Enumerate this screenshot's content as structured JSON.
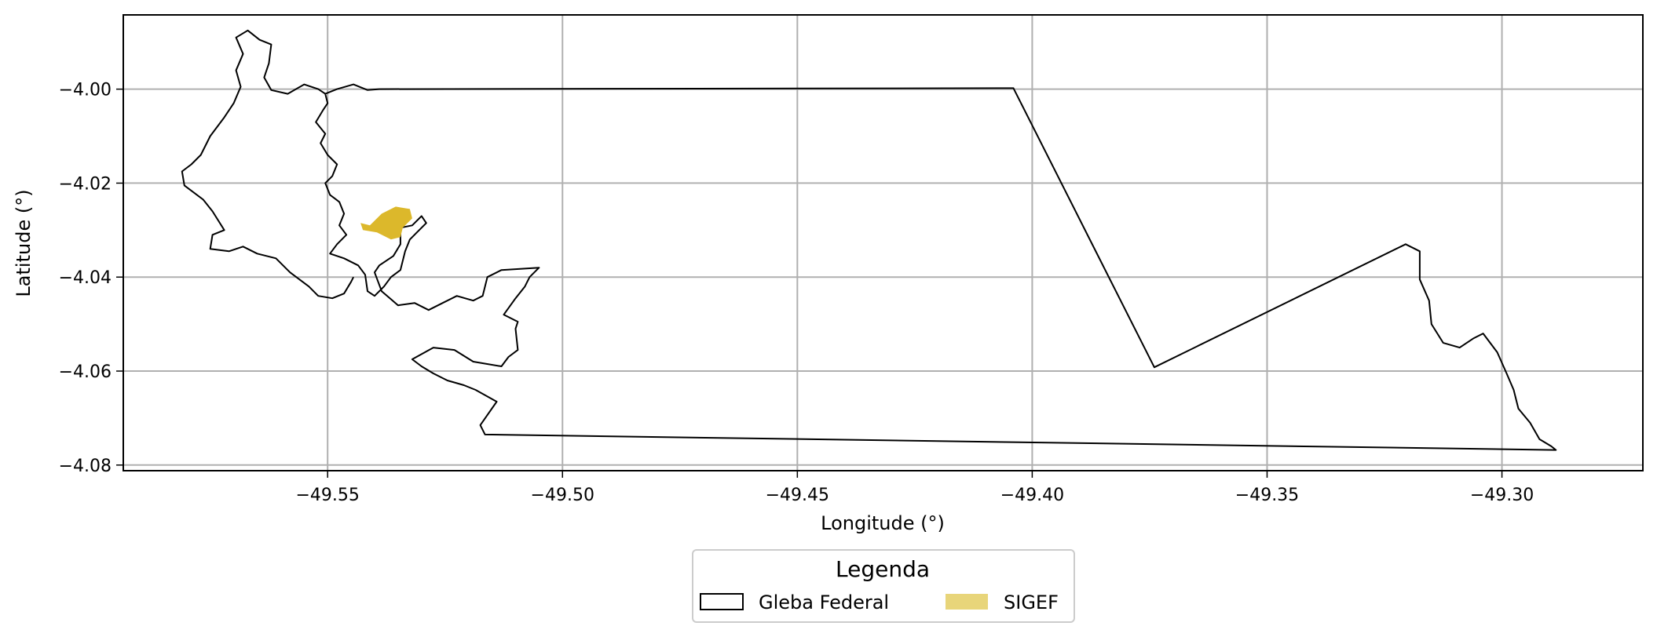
{
  "chart_data": {
    "type": "map",
    "xlabel": "Longitude (°)",
    "ylabel": "Latitude (°)",
    "xlim": [
      -49.5935,
      -49.27
    ],
    "ylim": [
      -4.0812,
      -3.9842
    ],
    "xticks": [
      -49.55,
      -49.5,
      -49.45,
      -49.4,
      -49.35,
      -49.3
    ],
    "yticks": [
      -4.0,
      -4.02,
      -4.04,
      -4.06,
      -4.08
    ],
    "xtick_labels": [
      "−49.55",
      "−49.50",
      "−49.45",
      "−49.40",
      "−49.35",
      "−49.30"
    ],
    "ytick_labels": [
      "−4.00",
      "−4.02",
      "−4.04",
      "−4.06",
      "−4.08"
    ],
    "grid": true,
    "legend": {
      "title": "Legenda",
      "placement": "below-center",
      "entries": [
        {
          "label": "Gleba Federal",
          "style": "outline",
          "edge": "#000000",
          "fill": "none"
        },
        {
          "label": "SIGEF",
          "style": "filled",
          "fill": "#e8d57a"
        }
      ]
    },
    "layers": [
      {
        "name": "Gleba Federal",
        "edge_color": "#000000",
        "fill": "none",
        "polygon": [
          [
            -49.539,
            -4.0
          ],
          [
            -49.404,
            -3.9998
          ],
          [
            -49.374,
            -4.0592
          ],
          [
            -49.3205,
            -4.033
          ],
          [
            -49.3175,
            -4.0345
          ],
          [
            -49.3175,
            -4.0405
          ],
          [
            -49.3155,
            -4.045
          ],
          [
            -49.315,
            -4.05
          ],
          [
            -49.3125,
            -4.054
          ],
          [
            -49.309,
            -4.055
          ],
          [
            -49.306,
            -4.053
          ],
          [
            -49.304,
            -4.052
          ],
          [
            -49.301,
            -4.056
          ],
          [
            -49.299,
            -4.0605
          ],
          [
            -49.2975,
            -4.064
          ],
          [
            -49.2965,
            -4.068
          ],
          [
            -49.294,
            -4.071
          ],
          [
            -49.292,
            -4.0745
          ],
          [
            -49.2895,
            -4.076
          ],
          [
            -49.2885,
            -4.0768
          ],
          [
            -49.5165,
            -4.0735
          ],
          [
            -49.5175,
            -4.0715
          ],
          [
            -49.514,
            -4.0665
          ],
          [
            -49.5185,
            -4.064
          ],
          [
            -49.521,
            -4.063
          ],
          [
            -49.5245,
            -4.062
          ],
          [
            -49.5275,
            -4.0605
          ],
          [
            -49.53,
            -4.059
          ],
          [
            -49.532,
            -4.0575
          ],
          [
            -49.5275,
            -4.055
          ],
          [
            -49.523,
            -4.0555
          ],
          [
            -49.519,
            -4.058
          ],
          [
            -49.513,
            -4.059
          ],
          [
            -49.5115,
            -4.057
          ],
          [
            -49.5095,
            -4.0555
          ],
          [
            -49.51,
            -4.051
          ],
          [
            -49.5095,
            -4.0495
          ],
          [
            -49.5125,
            -4.048
          ],
          [
            -49.51,
            -4.0445
          ],
          [
            -49.508,
            -4.042
          ],
          [
            -49.507,
            -4.04
          ],
          [
            -49.505,
            -4.038
          ],
          [
            -49.513,
            -4.0385
          ],
          [
            -49.516,
            -4.04
          ],
          [
            -49.517,
            -4.044
          ],
          [
            -49.519,
            -4.045
          ],
          [
            -49.5225,
            -4.044
          ],
          [
            -49.5255,
            -4.0455
          ],
          [
            -49.5285,
            -4.047
          ],
          [
            -49.5315,
            -4.0455
          ],
          [
            -49.535,
            -4.046
          ],
          [
            -49.5385,
            -4.043
          ],
          [
            -49.54,
            -4.039
          ],
          [
            -49.539,
            -4.0375
          ],
          [
            -49.536,
            -4.0355
          ],
          [
            -49.5345,
            -4.033
          ],
          [
            -49.5345,
            -4.0295
          ],
          [
            -49.532,
            -4.029
          ],
          [
            -49.53,
            -4.027
          ],
          [
            -49.529,
            -4.0285
          ],
          [
            -49.531,
            -4.0305
          ],
          [
            -49.5325,
            -4.032
          ],
          [
            -49.5335,
            -4.0345
          ],
          [
            -49.5345,
            -4.0385
          ],
          [
            -49.5365,
            -4.04
          ],
          [
            -49.538,
            -4.042
          ],
          [
            -49.54,
            -4.044
          ],
          [
            -49.5415,
            -4.043
          ],
          [
            -49.542,
            -4.0395
          ],
          [
            -49.5435,
            -4.0375
          ],
          [
            -49.5465,
            -4.036
          ],
          [
            -49.5495,
            -4.035
          ],
          [
            -49.548,
            -4.033
          ],
          [
            -49.546,
            -4.031
          ],
          [
            -49.5475,
            -4.029
          ],
          [
            -49.5465,
            -4.0265
          ],
          [
            -49.5475,
            -4.024
          ],
          [
            -49.5495,
            -4.0225
          ],
          [
            -49.5505,
            -4.02
          ],
          [
            -49.549,
            -4.0185
          ],
          [
            -49.548,
            -4.016
          ],
          [
            -49.55,
            -4.014
          ],
          [
            -49.5515,
            -4.0115
          ],
          [
            -49.5505,
            -4.0095
          ],
          [
            -49.5525,
            -4.007
          ],
          [
            -49.551,
            -4.0045
          ],
          [
            -49.55,
            -4.003
          ],
          [
            -49.5505,
            -4.001
          ],
          [
            -49.548,
            -4.0
          ],
          [
            -49.5445,
            -3.999
          ],
          [
            -49.5415,
            -4.0002
          ],
          [
            -49.539,
            -4.0
          ]
        ],
        "polygon_west_lobe": [
          [
            -49.5505,
            -4.001
          ],
          [
            -49.552,
            -4.0
          ],
          [
            -49.555,
            -3.999
          ],
          [
            -49.5585,
            -4.001
          ],
          [
            -49.562,
            -4.0002
          ],
          [
            -49.5635,
            -3.9975
          ],
          [
            -49.5625,
            -3.9945
          ],
          [
            -49.562,
            -3.9905
          ],
          [
            -49.5645,
            -3.9895
          ],
          [
            -49.567,
            -3.9875
          ],
          [
            -49.5695,
            -3.989
          ],
          [
            -49.568,
            -3.9925
          ],
          [
            -49.5695,
            -3.996
          ],
          [
            -49.5685,
            -3.9995
          ],
          [
            -49.57,
            -4.003
          ],
          [
            -49.572,
            -4.006
          ],
          [
            -49.575,
            -4.01
          ],
          [
            -49.577,
            -4.014
          ],
          [
            -49.579,
            -4.016
          ],
          [
            -49.581,
            -4.0175
          ],
          [
            -49.5805,
            -4.0205
          ],
          [
            -49.5765,
            -4.0235
          ],
          [
            -49.5745,
            -4.026
          ],
          [
            -49.572,
            -4.03
          ],
          [
            -49.5745,
            -4.031
          ],
          [
            -49.575,
            -4.034
          ],
          [
            -49.571,
            -4.0345
          ],
          [
            -49.568,
            -4.0335
          ],
          [
            -49.565,
            -4.035
          ],
          [
            -49.561,
            -4.036
          ],
          [
            -49.558,
            -4.039
          ],
          [
            -49.556,
            -4.0405
          ],
          [
            -49.554,
            -4.042
          ],
          [
            -49.552,
            -4.044
          ],
          [
            -49.549,
            -4.0445
          ],
          [
            -49.5465,
            -4.0435
          ],
          [
            -49.545,
            -4.041
          ],
          [
            -49.5445,
            -4.04
          ]
        ]
      },
      {
        "name": "SIGEF",
        "fill": "#dcb82b",
        "polygon": [
          [
            -49.541,
            -4.029
          ],
          [
            -49.5385,
            -4.0265
          ],
          [
            -49.5355,
            -4.025
          ],
          [
            -49.5325,
            -4.0255
          ],
          [
            -49.532,
            -4.0275
          ],
          [
            -49.534,
            -4.0295
          ],
          [
            -49.5345,
            -4.0315
          ],
          [
            -49.5365,
            -4.032
          ],
          [
            -49.5395,
            -4.0305
          ],
          [
            -49.5425,
            -4.03
          ],
          [
            -49.543,
            -4.0285
          ]
        ]
      }
    ]
  }
}
